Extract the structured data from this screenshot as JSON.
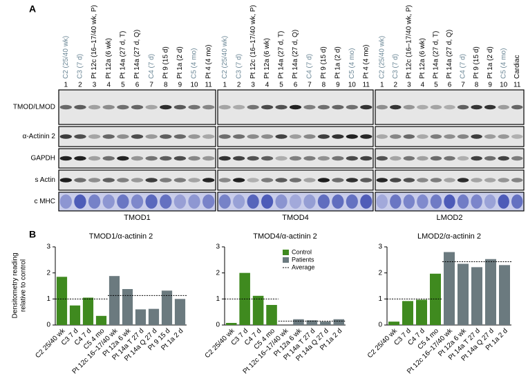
{
  "panel_a": {
    "label": "A",
    "row_labels": [
      "TMOD/LMOD",
      "α-Actinin 2",
      "GAPDH",
      "s Actin",
      "c MHC"
    ],
    "blocks": [
      {
        "title": "TMOD1",
        "lanes": [
          {
            "label": "C2 (25/40 wk)",
            "number": 1,
            "color": "#6b8796"
          },
          {
            "label": "C3 (7 d)",
            "number": 2,
            "color": "#6b8796"
          },
          {
            "label": "Pt 12c (16–17/40 wk, P)",
            "number": 3,
            "color": "#000000"
          },
          {
            "label": "Pt 12a (6 wk)",
            "number": 4,
            "color": "#000000"
          },
          {
            "label": "Pt 14a (27 d, T)",
            "number": 5,
            "color": "#000000"
          },
          {
            "label": "Pt 14a (27 d, Q)",
            "number": 6,
            "color": "#000000"
          },
          {
            "label": "C4 (7 d)",
            "number": 7,
            "color": "#6b8796"
          },
          {
            "label": "Pt 9 (15 d)",
            "number": 8,
            "color": "#000000"
          },
          {
            "label": "Pt 1a (2 d)",
            "number": 9,
            "color": "#000000"
          },
          {
            "label": "C5 (4 mo)",
            "number": 10,
            "color": "#6b8796"
          },
          {
            "label": "Pt 4 (4 mo)",
            "number": 11,
            "color": "#000000"
          }
        ]
      },
      {
        "title": "TMOD4",
        "lanes": [
          {
            "label": "C2 (25/40 wk)",
            "number": 1,
            "color": "#6b8796"
          },
          {
            "label": "C3 (7 d)",
            "number": 2,
            "color": "#6b8796"
          },
          {
            "label": "Pt 12c (16–17/40 wk, P)",
            "number": 3,
            "color": "#000000"
          },
          {
            "label": "Pt 12a (6 wk)",
            "number": 4,
            "color": "#000000"
          },
          {
            "label": "Pt 14a (27 d, T)",
            "number": 5,
            "color": "#000000"
          },
          {
            "label": "Pt 14a (27 d, Q)",
            "number": 6,
            "color": "#000000"
          },
          {
            "label": "C4 (7 d)",
            "number": 7,
            "color": "#6b8796"
          },
          {
            "label": "Pt 9 (15 d)",
            "number": 8,
            "color": "#000000"
          },
          {
            "label": "Pt 1a (2 d)",
            "number": 9,
            "color": "#000000"
          },
          {
            "label": "C5 (4 mo)",
            "number": 10,
            "color": "#6b8796"
          },
          {
            "label": "Pt 4 (4 mo)",
            "number": 11,
            "color": "#000000"
          }
        ]
      },
      {
        "title": "LMOD2",
        "lanes": [
          {
            "label": "C2 (25/40 wk)",
            "number": 1,
            "color": "#6b8796"
          },
          {
            "label": "C3 (7 d)",
            "number": 2,
            "color": "#6b8796"
          },
          {
            "label": "Pt 12c (16–17/40 wk, P)",
            "number": 3,
            "color": "#000000"
          },
          {
            "label": "Pt 12a (6 wk)",
            "number": 4,
            "color": "#000000"
          },
          {
            "label": "Pt 14a (27 d, T)",
            "number": 5,
            "color": "#000000"
          },
          {
            "label": "Pt 14a (27 d, Q)",
            "number": 6,
            "color": "#000000"
          },
          {
            "label": "C4 (7 d)",
            "number": 7,
            "color": "#6b8796"
          },
          {
            "label": "Pt 9 (15 d)",
            "number": 8,
            "color": "#000000"
          },
          {
            "label": "Pt 1a (2 d)",
            "number": 9,
            "color": "#000000"
          },
          {
            "label": "C5 (4 mo)",
            "number": 10,
            "color": "#6b8796"
          },
          {
            "label": "Cardiac",
            "number": 11,
            "color": "#000000"
          }
        ]
      }
    ]
  },
  "panel_b": {
    "label": "B",
    "ylabel": [
      "Densitometry reading",
      "relative to control"
    ]
  },
  "chart_data": [
    {
      "type": "bar",
      "title": "TMOD1/α-actinin 2",
      "categories": [
        "C2 25/40 wk",
        "C3 7 d",
        "C4 7 d",
        "C5 4 mo",
        "Pt 12c 16–17/40 wk",
        "Pt 12a 6 wk",
        "Pt 14a T 27 d",
        "Pt 14a Q 27 d",
        "Pt 9 15 d",
        "Pt 1a 2 d"
      ],
      "values": [
        1.85,
        0.75,
        1.05,
        0.35,
        1.88,
        1.38,
        0.6,
        0.62,
        1.32,
        1.0
      ],
      "colors": [
        "#3f8a1f",
        "#3f8a1f",
        "#3f8a1f",
        "#3f8a1f",
        "#6b7a7f",
        "#6b7a7f",
        "#6b7a7f",
        "#6b7a7f",
        "#6b7a7f",
        "#6b7a7f"
      ],
      "averages": [
        1.0,
        1.13
      ],
      "ylim": [
        0,
        3
      ],
      "yticks": [
        0,
        1,
        2,
        3
      ]
    },
    {
      "type": "bar",
      "title": "TMOD4/α-actinin 2",
      "categories": [
        "C2 25/40 wk",
        "C3 7 d",
        "C4 7 d",
        "C5 4 mo",
        "Pt 12c 16–17/40 wk",
        "Pt 12a 6 wk",
        "Pt 14a T 27 d",
        "Pt 14a Q 27 d",
        "Pt 1a 2 d"
      ],
      "values": [
        0.08,
        2.0,
        1.12,
        0.77,
        0.0,
        0.22,
        0.18,
        0.13,
        0.22
      ],
      "colors": [
        "#3f8a1f",
        "#3f8a1f",
        "#3f8a1f",
        "#3f8a1f",
        "#6b7a7f",
        "#6b7a7f",
        "#6b7a7f",
        "#6b7a7f",
        "#6b7a7f"
      ],
      "averages": [
        1.0,
        0.15
      ],
      "legend": [
        {
          "label": "Control",
          "color": "#3f8a1f"
        },
        {
          "label": "Patients",
          "color": "#6b7a7f"
        },
        {
          "label": "Average",
          "color": "#000000"
        }
      ],
      "ylim": [
        0,
        3
      ],
      "yticks": [
        0,
        1,
        2,
        3
      ]
    },
    {
      "type": "bar",
      "title": "LMOD2/α-actinin 2",
      "categories": [
        "C2 25/40 wk",
        "C3 7 d",
        "C4 7 d",
        "C5 4 mo",
        "Pt 12c 16–17/40 wk",
        "Pt 12a 6 wk",
        "Pt 14a T 27 d",
        "Pt 14a Q 27 d",
        "Pt 1a 2 d"
      ],
      "values": [
        0.13,
        0.92,
        0.97,
        1.97,
        2.8,
        2.35,
        2.22,
        2.53,
        2.3
      ],
      "colors": [
        "#3f8a1f",
        "#3f8a1f",
        "#3f8a1f",
        "#3f8a1f",
        "#6b7a7f",
        "#6b7a7f",
        "#6b7a7f",
        "#6b7a7f",
        "#6b7a7f"
      ],
      "averages": [
        1.0,
        2.43
      ],
      "ylim": [
        0,
        3
      ],
      "yticks": [
        0,
        1,
        2,
        3
      ]
    }
  ]
}
